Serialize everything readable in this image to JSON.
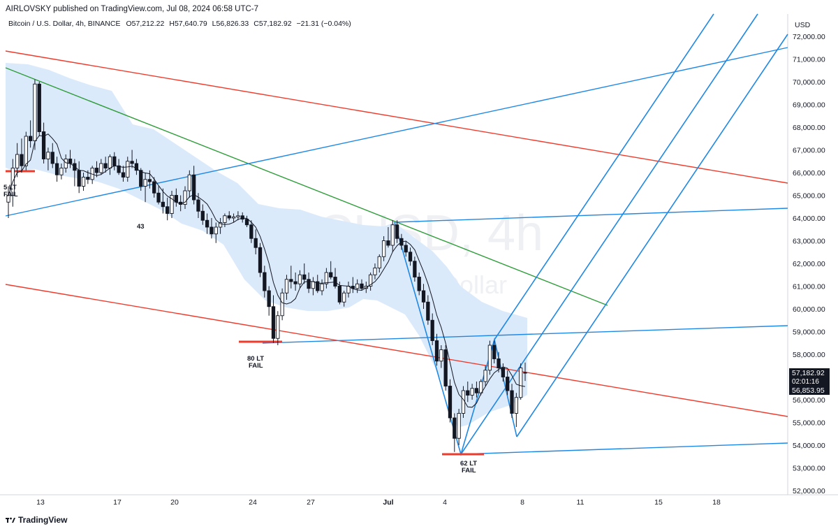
{
  "header": {
    "published": "AIRLOVSKY published on TradingView.com, Jul 08, 2024 06:58 UTC-7",
    "symbol_line": "Bitcoin / U.S. Dollar, 4h, BINANCE",
    "open": "O57,212.22",
    "high": "H57,640.79",
    "low": "L56,826.33",
    "close": "C57,182.92",
    "change": "−21.31 (−0.04%)"
  },
  "watermark": {
    "title": "BTCUSD, 4h",
    "subtitle": "Bitcoin / U.S. Dollar"
  },
  "footer": {
    "logo": "TradingView"
  },
  "colors": {
    "up": "#131722",
    "down": "#131722",
    "channel": "#ef3b2c",
    "trend": "#2f9d3a",
    "pitchfork": "#1e88e5",
    "cloud": "#dbeafb",
    "ma": "#131722"
  },
  "chart_data": {
    "type": "candlestick",
    "currency": "USD",
    "ylim": [
      51500,
      73500
    ],
    "y_ticks": [
      "72,000.00",
      "71,000.00",
      "70,000.00",
      "69,000.00",
      "68,000.00",
      "67,000.00",
      "66,000.00",
      "65,000.00",
      "64,000.00",
      "63,000.00",
      "62,000.00",
      "61,000.00",
      "60,000.00",
      "59,000.00",
      "58,000.00",
      "57,000.00",
      "56,000.00",
      "55,000.00",
      "54,000.00",
      "53,000.00",
      "52,000.00"
    ],
    "x_ticks": [
      "13",
      "17",
      "20",
      "24",
      "27",
      "Jul",
      "4",
      "8",
      "11",
      "15",
      "18"
    ],
    "price_tags": {
      "last": "57,182.92",
      "countdown": "02:01:16",
      "ma_value": "56,853.95"
    },
    "annotations": [
      "5 LT\nFAIL",
      "43",
      "80 LT\nFAIL",
      "62 LT\nFAIL"
    ],
    "candles": [
      [
        64700,
        65400,
        64000,
        65000
      ],
      [
        65000,
        66600,
        64500,
        66200
      ],
      [
        66200,
        67300,
        65800,
        66800
      ],
      [
        66800,
        67500,
        66000,
        66300
      ],
      [
        66300,
        67800,
        66100,
        67600
      ],
      [
        67600,
        68300,
        67100,
        67400
      ],
      [
        67400,
        70100,
        67000,
        69900
      ],
      [
        69900,
        70000,
        67600,
        67800
      ],
      [
        67800,
        68200,
        66400,
        66600
      ],
      [
        66600,
        67100,
        66100,
        66900
      ],
      [
        66900,
        67300,
        66200,
        66400
      ],
      [
        66400,
        66700,
        65600,
        65900
      ],
      [
        65900,
        66400,
        65700,
        66200
      ],
      [
        66200,
        66800,
        66000,
        66600
      ],
      [
        66600,
        67000,
        66200,
        66400
      ],
      [
        66400,
        66600,
        65400,
        66100
      ],
      [
        66100,
        66500,
        65100,
        65400
      ],
      [
        65400,
        66000,
        65200,
        65800
      ],
      [
        65800,
        66100,
        65500,
        65700
      ],
      [
        65700,
        66300,
        65500,
        66200
      ],
      [
        66200,
        66500,
        65800,
        66000
      ],
      [
        66000,
        66600,
        65900,
        66400
      ],
      [
        66400,
        66700,
        66000,
        66200
      ],
      [
        66200,
        66800,
        65900,
        66700
      ],
      [
        66700,
        66900,
        66100,
        66300
      ],
      [
        66300,
        66600,
        65900,
        66000
      ],
      [
        66000,
        66300,
        65600,
        65800
      ],
      [
        65800,
        66700,
        65600,
        66500
      ],
      [
        66500,
        67000,
        66200,
        66400
      ],
      [
        66400,
        66600,
        65900,
        66100
      ],
      [
        66100,
        66200,
        65200,
        65400
      ],
      [
        65400,
        66000,
        64700,
        65700
      ],
      [
        65700,
        66100,
        65300,
        65600
      ],
      [
        65600,
        65800,
        64900,
        65100
      ],
      [
        65100,
        65400,
        64600,
        64700
      ],
      [
        64700,
        65300,
        64200,
        64500
      ],
      [
        64500,
        64900,
        63900,
        64200
      ],
      [
        64200,
        65200,
        64000,
        65000
      ],
      [
        65000,
        65300,
        64500,
        64700
      ],
      [
        64700,
        65000,
        64300,
        64600
      ],
      [
        64600,
        65400,
        64400,
        65200
      ],
      [
        65200,
        66100,
        64900,
        65900
      ],
      [
        65900,
        66300,
        64600,
        64800
      ],
      [
        64800,
        65100,
        64000,
        64300
      ],
      [
        64300,
        64600,
        63700,
        63900
      ],
      [
        63900,
        64200,
        63300,
        63600
      ],
      [
        63600,
        64000,
        63100,
        63300
      ],
      [
        63300,
        63800,
        62900,
        63600
      ],
      [
        63600,
        64000,
        63300,
        63800
      ],
      [
        63800,
        64200,
        63600,
        64100
      ],
      [
        64100,
        64300,
        63900,
        64000
      ],
      [
        64000,
        64200,
        63800,
        64050
      ],
      [
        64050,
        64300,
        63900,
        64100
      ],
      [
        64100,
        64250,
        63800,
        63950
      ],
      [
        63950,
        64100,
        63600,
        63700
      ],
      [
        63700,
        63900,
        62900,
        63100
      ],
      [
        63100,
        63500,
        62400,
        62700
      ],
      [
        62700,
        62900,
        61400,
        61600
      ],
      [
        61600,
        61900,
        60500,
        60800
      ],
      [
        60800,
        61000,
        59700,
        60100
      ],
      [
        60100,
        60600,
        58500,
        58700
      ],
      [
        58700,
        59900,
        58400,
        59700
      ],
      [
        59700,
        60900,
        59500,
        60700
      ],
      [
        60700,
        61500,
        60400,
        61300
      ],
      [
        61300,
        61900,
        60900,
        61200
      ],
      [
        61200,
        61600,
        60800,
        61100
      ],
      [
        61100,
        61700,
        60900,
        61500
      ],
      [
        61500,
        62000,
        61100,
        61300
      ],
      [
        61300,
        61600,
        60700,
        60900
      ],
      [
        60900,
        61400,
        60600,
        61200
      ],
      [
        61200,
        61500,
        60700,
        60800
      ],
      [
        60800,
        61300,
        60600,
        61100
      ],
      [
        61100,
        61800,
        60900,
        61600
      ],
      [
        61600,
        62100,
        61300,
        61400
      ],
      [
        61400,
        61800,
        60900,
        61000
      ],
      [
        61000,
        61200,
        60200,
        60300
      ],
      [
        60300,
        60800,
        60100,
        60700
      ],
      [
        60700,
        61200,
        60500,
        61000
      ],
      [
        61000,
        61400,
        60700,
        60900
      ],
      [
        60900,
        61300,
        60700,
        61100
      ],
      [
        61100,
        61300,
        60800,
        60900
      ],
      [
        60900,
        61200,
        60700,
        61000
      ],
      [
        61000,
        61600,
        60800,
        61500
      ],
      [
        61500,
        62000,
        61300,
        61800
      ],
      [
        61800,
        62400,
        61600,
        62300
      ],
      [
        62300,
        63200,
        62100,
        63000
      ],
      [
        63000,
        63600,
        62700,
        62800
      ],
      [
        62800,
        63900,
        62500,
        63700
      ],
      [
        63700,
        63900,
        62900,
        63100
      ],
      [
        63100,
        63300,
        62600,
        62800
      ],
      [
        62800,
        63000,
        62300,
        62500
      ],
      [
        62500,
        62700,
        61900,
        62100
      ],
      [
        62100,
        62300,
        61200,
        61400
      ],
      [
        61400,
        61600,
        60600,
        60800
      ],
      [
        60800,
        61100,
        60000,
        60300
      ],
      [
        60300,
        60600,
        59300,
        59500
      ],
      [
        59500,
        59800,
        58400,
        58600
      ],
      [
        58600,
        58900,
        57500,
        57700
      ],
      [
        57700,
        58400,
        57400,
        58200
      ],
      [
        58200,
        58400,
        56400,
        56600
      ],
      [
        56600,
        56900,
        55000,
        55200
      ],
      [
        55200,
        55400,
        53700,
        54300
      ],
      [
        54300,
        55600,
        54000,
        55400
      ],
      [
        55400,
        56600,
        55200,
        56400
      ],
      [
        56400,
        56800,
        55900,
        56200
      ],
      [
        56200,
        56700,
        56000,
        56500
      ],
      [
        56500,
        56800,
        56100,
        56300
      ],
      [
        56300,
        56900,
        56200,
        56800
      ],
      [
        56800,
        57500,
        56600,
        57300
      ],
      [
        57300,
        58600,
        57100,
        58400
      ],
      [
        58400,
        58600,
        57600,
        57800
      ],
      [
        57800,
        58100,
        57200,
        57400
      ],
      [
        57400,
        57600,
        56800,
        57000
      ],
      [
        57000,
        57300,
        56200,
        56400
      ],
      [
        56400,
        56700,
        55200,
        55400
      ],
      [
        55400,
        56300,
        54800,
        56100
      ],
      [
        56100,
        57600,
        56000,
        57400
      ],
      [
        57200,
        57640,
        56826,
        57183
      ]
    ]
  }
}
